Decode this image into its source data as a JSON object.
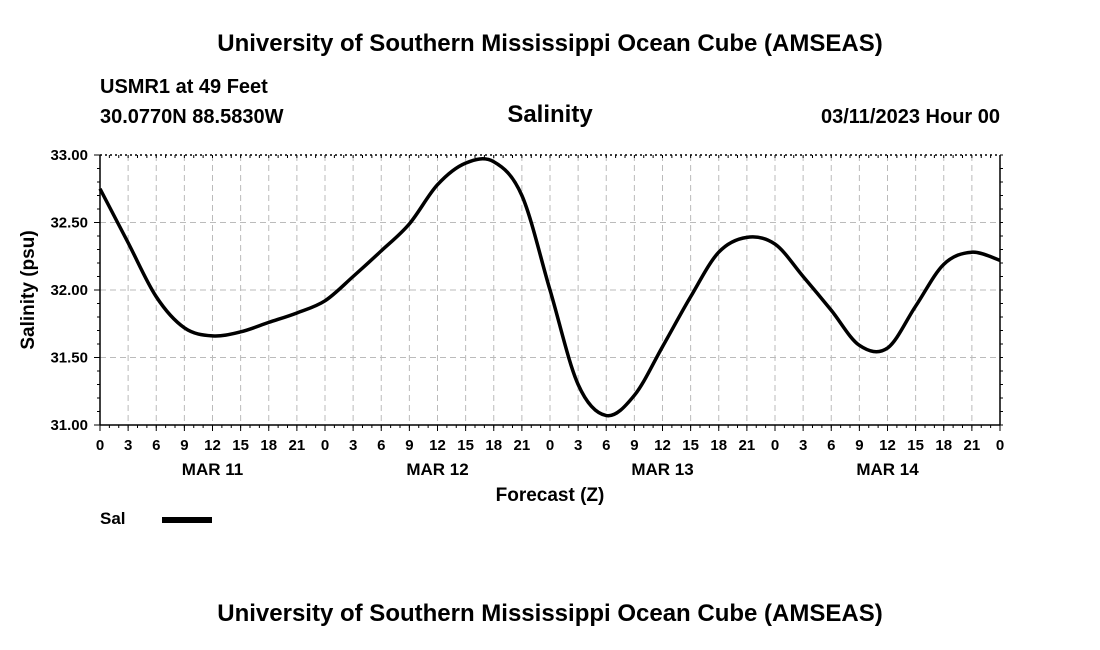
{
  "header": {
    "title": "University of Southern Mississippi Ocean Cube (AMSEAS)",
    "station": "USMR1 at 49 Feet",
    "coords": "30.0770N  88.5830W",
    "variable": "Salinity",
    "run_time": "03/11/2023 Hour 00"
  },
  "footer": {
    "title": "University of Southern Mississippi Ocean Cube (AMSEAS)"
  },
  "legend": {
    "label": "Sal"
  },
  "colors": {
    "line": "#000000",
    "grid": "#bbbbbb"
  },
  "chart_data": {
    "type": "line",
    "title": "Salinity",
    "xlabel": "Forecast (Z)",
    "ylabel": "Salinity (psu)",
    "xlim": [
      0,
      96
    ],
    "ylim": [
      31.0,
      33.0
    ],
    "y_ticks": [
      "31.00",
      "31.50",
      "32.00",
      "32.50",
      "33.00"
    ],
    "y_tick_values": [
      31.0,
      31.5,
      32.0,
      32.5,
      33.0
    ],
    "x_tick_labels": [
      "0",
      "3",
      "6",
      "9",
      "12",
      "15",
      "18",
      "21",
      "0",
      "3",
      "6",
      "9",
      "12",
      "15",
      "18",
      "21",
      "0",
      "3",
      "6",
      "9",
      "12",
      "15",
      "18",
      "21",
      "0",
      "3",
      "6",
      "9",
      "12",
      "15",
      "18",
      "21",
      "0"
    ],
    "date_labels": [
      {
        "label": "MAR 11",
        "hour": 12
      },
      {
        "label": "MAR 12",
        "hour": 36
      },
      {
        "label": "MAR 13",
        "hour": 60
      },
      {
        "label": "MAR 14",
        "hour": 84
      }
    ],
    "grid": true,
    "series": [
      {
        "name": "Sal",
        "x": [
          0,
          3,
          6,
          9,
          12,
          15,
          18,
          21,
          24,
          27,
          30,
          33,
          36,
          39,
          42,
          45,
          48,
          51,
          54,
          57,
          60,
          63,
          66,
          69,
          72,
          75,
          78,
          81,
          84,
          87,
          90,
          93,
          96
        ],
        "y": [
          32.75,
          32.35,
          31.95,
          31.72,
          31.66,
          31.69,
          31.76,
          31.83,
          31.92,
          32.1,
          32.29,
          32.49,
          32.78,
          32.94,
          32.95,
          32.7,
          32.0,
          31.3,
          31.07,
          31.22,
          31.58,
          31.95,
          32.28,
          32.39,
          32.34,
          32.1,
          31.85,
          31.59,
          31.57,
          31.88,
          32.19,
          32.28,
          32.22
        ]
      }
    ]
  }
}
